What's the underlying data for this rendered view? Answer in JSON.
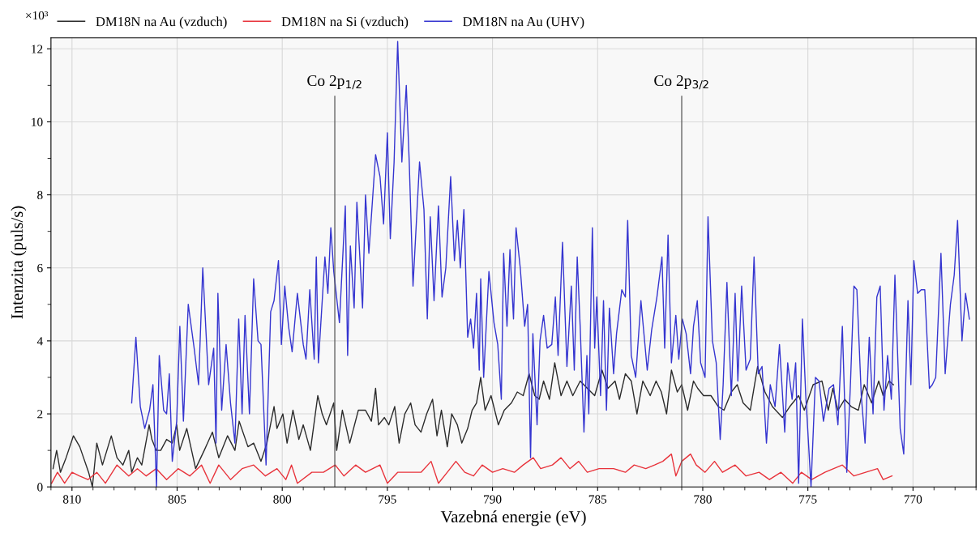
{
  "chart_data": {
    "type": "line",
    "xlabel": "Vazebná energie (eV)",
    "ylabel": "Intenzita (puls/s)",
    "annotations": [
      "×10³"
    ],
    "xlim": [
      811,
      767
    ],
    "xticks": [
      810,
      805,
      800,
      795,
      790,
      785,
      780,
      775,
      770
    ],
    "ylim": [
      0,
      12.3
    ],
    "yticks": [
      0,
      2,
      4,
      6,
      8,
      10,
      12
    ],
    "grid": true,
    "legend": "top left",
    "marker": "none",
    "line_style": "solid",
    "ref_lines": [
      {
        "axis": "x",
        "value": 797.5,
        "label": "Co 2p$_{1/2}$",
        "color": "#555555"
      },
      {
        "axis": "x",
        "value": 781.0,
        "label": "Co 2p$_{3/2}$",
        "color": "#555555"
      }
    ],
    "series": [
      {
        "name": "DM18N na Au (vzduch)",
        "color": "#2b2b2b",
        "x": [
          810.9,
          810.73,
          810.55,
          810.28,
          809.93,
          809.63,
          809.21,
          809.03,
          808.82,
          808.55,
          808.13,
          807.86,
          807.58,
          807.3,
          807.16,
          806.89,
          806.68,
          806.33,
          806.2,
          805.99,
          805.78,
          805.5,
          805.23,
          805.02,
          804.88,
          804.54,
          804.12,
          803.71,
          803.32,
          803.02,
          802.6,
          802.25,
          802.05,
          801.63,
          801.36,
          801.01,
          800.73,
          800.39,
          800.25,
          799.97,
          799.77,
          799.49,
          799.21,
          799.0,
          798.66,
          798.31,
          798.1,
          797.9,
          797.55,
          797.41,
          797.14,
          796.79,
          796.38,
          796.04,
          795.76,
          795.56,
          795.42,
          795.14,
          794.93,
          794.65,
          794.44,
          794.17,
          793.89,
          793.68,
          793.4,
          793.13,
          792.85,
          792.64,
          792.43,
          792.15,
          791.94,
          791.67,
          791.46,
          791.18,
          790.97,
          790.76,
          790.56,
          790.35,
          790.07,
          789.72,
          789.44,
          789.1,
          788.82,
          788.54,
          788.26,
          787.99,
          787.78,
          787.57,
          787.29,
          787.04,
          786.74,
          786.46,
          786.18,
          785.83,
          785.49,
          785.14,
          784.79,
          784.51,
          784.17,
          783.96,
          783.68,
          783.4,
          783.13,
          782.85,
          782.5,
          782.22,
          781.97,
          781.72,
          781.49,
          781.21,
          781.0,
          780.72,
          780.44,
          780.24,
          779.96,
          779.61,
          779.26,
          778.99,
          778.64,
          778.36,
          778.08,
          777.74,
          777.39,
          777.04,
          776.69,
          776.21,
          775.86,
          775.44,
          775.17,
          774.75,
          774.33,
          774.03,
          773.81,
          773.57,
          773.25,
          772.94,
          772.6,
          772.32,
          771.97,
          771.63,
          771.42,
          771.14,
          770.93
        ],
        "values": [
          0.5,
          1.0,
          0.4,
          0.8,
          1.4,
          1.1,
          0.4,
          0.0,
          1.2,
          0.6,
          1.4,
          0.8,
          0.6,
          1.0,
          0.4,
          0.8,
          0.6,
          1.7,
          1.3,
          1.0,
          1.0,
          1.3,
          1.2,
          1.7,
          1.0,
          1.6,
          0.5,
          1.0,
          1.5,
          0.8,
          1.4,
          1.0,
          1.8,
          1.1,
          1.2,
          0.7,
          1.2,
          2.2,
          1.6,
          2.0,
          1.2,
          2.1,
          1.3,
          1.7,
          1.0,
          2.5,
          2.0,
          1.7,
          2.3,
          1.0,
          2.1,
          1.2,
          2.1,
          2.1,
          1.8,
          2.7,
          1.7,
          1.9,
          1.7,
          2.2,
          1.2,
          2.0,
          2.3,
          1.7,
          1.5,
          2.0,
          2.4,
          1.4,
          2.1,
          1.1,
          2.0,
          1.7,
          1.2,
          1.6,
          2.1,
          2.3,
          3.0,
          2.1,
          2.5,
          1.7,
          2.1,
          2.3,
          2.6,
          2.5,
          3.1,
          2.5,
          2.4,
          2.9,
          2.4,
          3.4,
          2.5,
          2.9,
          2.5,
          2.9,
          2.7,
          2.5,
          3.2,
          2.7,
          2.9,
          2.4,
          3.1,
          2.9,
          2.0,
          2.9,
          2.5,
          2.9,
          2.6,
          2.0,
          3.2,
          2.6,
          2.8,
          2.1,
          2.9,
          2.7,
          2.5,
          2.5,
          2.2,
          2.1,
          2.6,
          2.8,
          2.3,
          2.1,
          3.3,
          2.6,
          2.2,
          1.9,
          2.2,
          2.5,
          2.1,
          2.8,
          2.9,
          2.1,
          2.7,
          2.1,
          2.4,
          2.2,
          2.1,
          2.8,
          2.3,
          2.9,
          2.5,
          2.9,
          2.8
        ]
      },
      {
        "name": "DM18N na Si (vzduch)",
        "color": "#e8333b",
        "x": [
          810.97,
          810.69,
          810.35,
          810.0,
          809.65,
          809.24,
          808.82,
          808.41,
          807.86,
          807.3,
          806.89,
          806.47,
          805.99,
          805.5,
          804.95,
          804.4,
          803.84,
          803.43,
          803.02,
          802.46,
          801.91,
          801.36,
          800.8,
          800.25,
          799.83,
          799.56,
          799.28,
          798.59,
          798.04,
          797.48,
          797.07,
          796.51,
          796.04,
          795.35,
          795.0,
          794.51,
          793.96,
          793.4,
          792.92,
          792.57,
          792.15,
          791.74,
          791.32,
          790.9,
          790.49,
          790.0,
          789.51,
          788.96,
          788.54,
          788.06,
          787.71,
          787.15,
          786.74,
          786.32,
          785.9,
          785.49,
          784.93,
          784.24,
          783.68,
          783.26,
          782.71,
          782.29,
          781.9,
          781.49,
          781.28,
          781.0,
          780.58,
          780.31,
          779.89,
          779.44,
          779.06,
          778.46,
          777.94,
          777.32,
          776.83,
          776.28,
          775.72,
          775.31,
          774.82,
          774.19,
          773.36,
          772.81,
          772.25,
          771.69,
          771.42,
          771.0
        ],
        "values": [
          0.1,
          0.4,
          0.1,
          0.4,
          0.3,
          0.2,
          0.4,
          0.1,
          0.6,
          0.3,
          0.5,
          0.3,
          0.5,
          0.2,
          0.5,
          0.3,
          0.6,
          0.1,
          0.6,
          0.2,
          0.5,
          0.6,
          0.3,
          0.5,
          0.2,
          0.6,
          0.1,
          0.4,
          0.4,
          0.6,
          0.3,
          0.6,
          0.4,
          0.6,
          0.1,
          0.4,
          0.4,
          0.4,
          0.7,
          0.1,
          0.4,
          0.7,
          0.4,
          0.3,
          0.6,
          0.4,
          0.5,
          0.4,
          0.6,
          0.8,
          0.5,
          0.6,
          0.8,
          0.5,
          0.7,
          0.4,
          0.5,
          0.5,
          0.4,
          0.6,
          0.5,
          0.6,
          0.7,
          0.9,
          0.3,
          0.7,
          0.9,
          0.6,
          0.4,
          0.7,
          0.4,
          0.6,
          0.3,
          0.4,
          0.2,
          0.4,
          0.1,
          0.4,
          0.2,
          0.4,
          0.6,
          0.3,
          0.4,
          0.5,
          0.2,
          0.3
        ]
      },
      {
        "name": "DM18N na Au (UHV)",
        "color": "#3535d0",
        "x": [
          807.16,
          806.96,
          806.75,
          806.54,
          806.31,
          806.15,
          805.98,
          805.85,
          805.64,
          805.5,
          805.37,
          805.23,
          805.02,
          804.87,
          804.7,
          804.47,
          804.19,
          803.98,
          803.78,
          803.5,
          803.26,
          803.15,
          803.06,
          802.88,
          802.67,
          802.46,
          802.25,
          802.07,
          801.91,
          801.77,
          801.56,
          801.36,
          801.15,
          801.01,
          800.77,
          800.55,
          800.39,
          800.18,
          800.04,
          799.88,
          799.7,
          799.53,
          799.28,
          799.0,
          798.87,
          798.69,
          798.48,
          798.38,
          798.28,
          797.97,
          797.83,
          797.69,
          797.55,
          797.28,
          797.0,
          796.89,
          796.76,
          796.58,
          796.45,
          796.18,
          796.04,
          795.88,
          795.56,
          795.35,
          795.18,
          795.0,
          794.86,
          794.68,
          794.51,
          794.31,
          794.1,
          793.96,
          793.78,
          793.47,
          793.26,
          793.1,
          792.96,
          792.78,
          792.57,
          792.4,
          792.22,
          791.99,
          791.81,
          791.67,
          791.53,
          791.36,
          791.18,
          791.04,
          790.9,
          790.76,
          790.63,
          790.56,
          790.42,
          790.17,
          789.93,
          789.75,
          789.58,
          789.47,
          789.31,
          789.17,
          789.0,
          788.88,
          788.68,
          788.47,
          788.33,
          788.19,
          788.08,
          787.88,
          787.74,
          787.57,
          787.4,
          787.18,
          787.01,
          786.88,
          786.67,
          786.46,
          786.25,
          786.11,
          785.97,
          785.83,
          785.65,
          785.51,
          785.42,
          785.25,
          785.14,
          785.04,
          784.86,
          784.72,
          784.58,
          784.44,
          784.24,
          784.1,
          783.85,
          783.68,
          783.57,
          783.4,
          783.19,
          782.94,
          782.64,
          782.43,
          782.18,
          781.94,
          781.81,
          781.65,
          781.49,
          781.28,
          781.14,
          780.97,
          780.79,
          780.58,
          780.44,
          780.26,
          780.1,
          779.89,
          779.75,
          779.54,
          779.36,
          779.17,
          779.03,
          778.85,
          778.64,
          778.46,
          778.33,
          778.15,
          777.94,
          777.74,
          777.56,
          777.36,
          777.18,
          776.97,
          776.79,
          776.56,
          776.35,
          776.1,
          775.96,
          775.75,
          775.58,
          775.44,
          775.26,
          775.1,
          774.85,
          774.64,
          774.47,
          774.26,
          773.99,
          773.78,
          773.57,
          773.36,
          773.15,
          772.97,
          772.81,
          772.67,
          772.46,
          772.28,
          772.08,
          771.9,
          771.72,
          771.56,
          771.38,
          771.21,
          771.03,
          770.86,
          770.61,
          770.44,
          770.24,
          770.1,
          769.96,
          769.78,
          769.61,
          769.44,
          769.22,
          769.08,
          768.92,
          768.67,
          768.47,
          768.22,
          768.04,
          767.88,
          767.67,
          767.5,
          767.32
        ],
        "values": [
          2.3,
          4.1,
          2.2,
          1.6,
          2.1,
          2.8,
          0.0,
          3.6,
          2.1,
          2.0,
          3.1,
          0.7,
          1.8,
          4.4,
          1.8,
          5.0,
          3.8,
          2.8,
          6.0,
          2.8,
          3.8,
          1.2,
          5.3,
          2.1,
          3.9,
          2.3,
          1.2,
          4.6,
          2.0,
          4.7,
          2.0,
          5.7,
          4.0,
          3.9,
          0.6,
          4.8,
          5.1,
          6.2,
          3.9,
          5.5,
          4.4,
          3.7,
          5.3,
          3.9,
          3.5,
          5.4,
          3.5,
          6.3,
          3.4,
          6.3,
          5.3,
          7.1,
          5.9,
          4.5,
          7.7,
          3.6,
          6.6,
          4.9,
          7.8,
          4.9,
          8.0,
          6.4,
          9.1,
          8.5,
          7.2,
          9.7,
          6.8,
          8.9,
          12.2,
          8.9,
          11.0,
          8.9,
          5.5,
          8.9,
          7.6,
          4.6,
          7.4,
          5.1,
          7.7,
          5.2,
          6.0,
          8.5,
          6.2,
          7.3,
          6.0,
          7.6,
          4.1,
          4.6,
          3.8,
          5.3,
          3.2,
          5.7,
          3.0,
          5.9,
          4.5,
          3.9,
          2.4,
          6.4,
          4.4,
          6.5,
          4.6,
          7.1,
          6.0,
          4.4,
          5.0,
          0.8,
          4.2,
          1.7,
          4.0,
          4.7,
          3.8,
          3.9,
          5.2,
          3.6,
          6.7,
          3.3,
          5.5,
          3.2,
          6.3,
          4.4,
          1.5,
          3.6,
          2.0,
          7.1,
          3.8,
          5.2,
          2.5,
          5.1,
          2.1,
          4.9,
          3.1,
          4.2,
          5.4,
          5.2,
          7.3,
          3.6,
          3.0,
          5.1,
          3.2,
          4.3,
          5.2,
          6.3,
          3.8,
          6.9,
          3.4,
          4.7,
          3.5,
          4.6,
          4.2,
          3.1,
          4.4,
          5.1,
          3.4,
          3.0,
          7.4,
          4.0,
          3.4,
          1.3,
          2.8,
          5.6,
          2.5,
          5.3,
          2.9,
          5.5,
          3.2,
          3.5,
          6.3,
          3.1,
          3.3,
          1.2,
          2.8,
          2.2,
          3.9,
          1.5,
          3.4,
          2.4,
          3.4,
          0.1,
          4.6,
          2.5,
          0.0,
          3.0,
          2.9,
          1.8,
          2.7,
          2.8,
          1.7,
          4.4,
          0.4,
          2.9,
          5.5,
          5.4,
          2.5,
          1.2,
          4.1,
          2.0,
          5.2,
          5.5,
          2.1,
          3.6,
          2.4,
          5.8,
          1.6,
          0.9,
          5.1,
          2.8,
          6.2,
          5.3,
          5.4,
          5.4,
          2.7,
          2.8,
          3.0,
          6.4,
          3.1,
          5.0,
          5.8,
          7.3,
          4.0,
          5.3,
          4.6
        ]
      }
    ]
  }
}
